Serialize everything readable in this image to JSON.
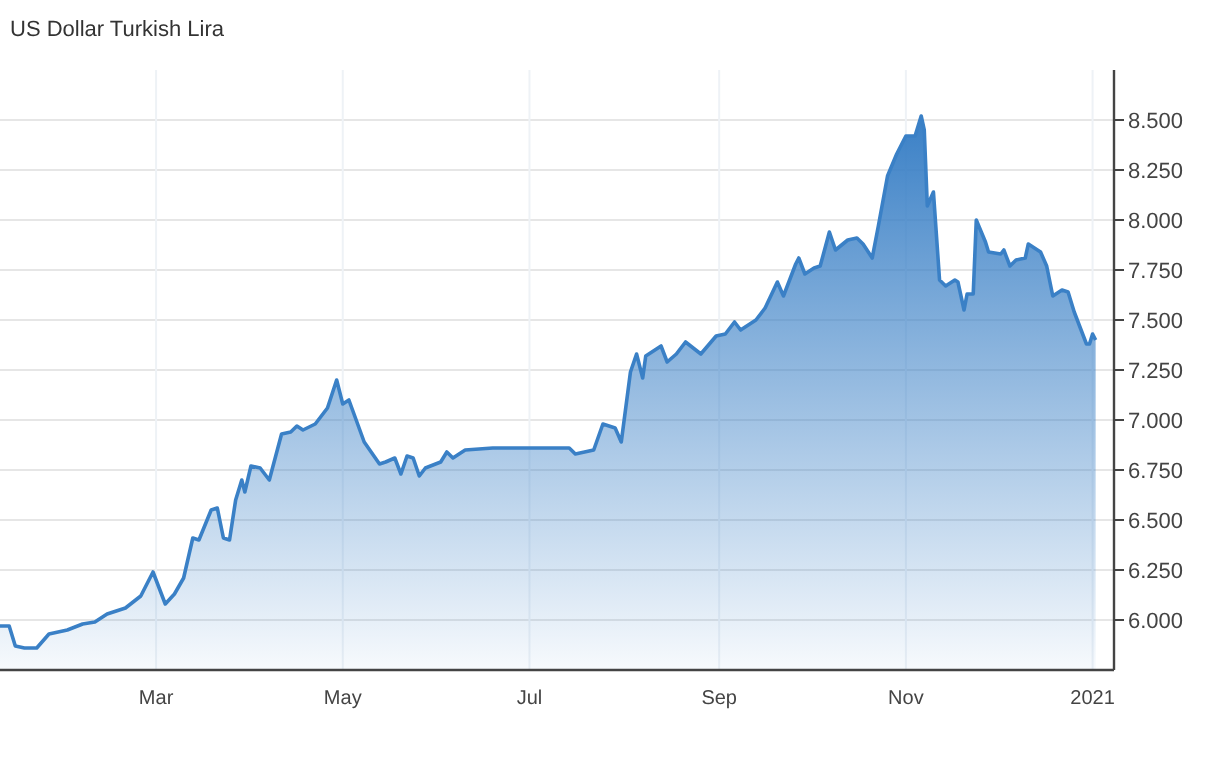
{
  "chart_data": {
    "type": "area",
    "title": "US Dollar Turkish Lira",
    "x": [
      "2020-01-10",
      "2020-01-13",
      "2020-01-15",
      "2020-01-18",
      "2020-01-22",
      "2020-01-26",
      "2020-02-01",
      "2020-02-06",
      "2020-02-10",
      "2020-02-14",
      "2020-02-20",
      "2020-02-25",
      "2020-02-29",
      "2020-03-04",
      "2020-03-07",
      "2020-03-10",
      "2020-03-13",
      "2020-03-15",
      "2020-03-19",
      "2020-03-21",
      "2020-03-23",
      "2020-03-25",
      "2020-03-27",
      "2020-03-29",
      "2020-03-30",
      "2020-04-01",
      "2020-04-04",
      "2020-04-07",
      "2020-04-11",
      "2020-04-14",
      "2020-04-16",
      "2020-04-18",
      "2020-04-22",
      "2020-04-26",
      "2020-04-29",
      "2020-05-01",
      "2020-05-03",
      "2020-05-08",
      "2020-05-13",
      "2020-05-15",
      "2020-05-18",
      "2020-05-20",
      "2020-05-22",
      "2020-05-24",
      "2020-05-26",
      "2020-05-28",
      "2020-06-02",
      "2020-06-04",
      "2020-06-06",
      "2020-06-10",
      "2020-06-19",
      "2020-06-28",
      "2020-07-06",
      "2020-07-14",
      "2020-07-16",
      "2020-07-22",
      "2020-07-25",
      "2020-07-29",
      "2020-07-31",
      "2020-08-03",
      "2020-08-05",
      "2020-08-07",
      "2020-08-08",
      "2020-08-13",
      "2020-08-15",
      "2020-08-18",
      "2020-08-21",
      "2020-08-26",
      "2020-08-31",
      "2020-09-03",
      "2020-09-06",
      "2020-09-08",
      "2020-09-13",
      "2020-09-16",
      "2020-09-20",
      "2020-09-22",
      "2020-09-26",
      "2020-09-27",
      "2020-09-29",
      "2020-10-02",
      "2020-10-04",
      "2020-10-07",
      "2020-10-09",
      "2020-10-13",
      "2020-10-16",
      "2020-10-18",
      "2020-10-21",
      "2020-10-23",
      "2020-10-26",
      "2020-10-29",
      "2020-11-01",
      "2020-11-04",
      "2020-11-06",
      "2020-11-07",
      "2020-11-08",
      "2020-11-10",
      "2020-11-12",
      "2020-11-14",
      "2020-11-17",
      "2020-11-18",
      "2020-11-20",
      "2020-11-21",
      "2020-11-23",
      "2020-11-24",
      "2020-11-27",
      "2020-11-28",
      "2020-12-02",
      "2020-12-03",
      "2020-12-05",
      "2020-12-07",
      "2020-12-10",
      "2020-12-11",
      "2020-12-15",
      "2020-12-17",
      "2020-12-19",
      "2020-12-22",
      "2020-12-24",
      "2020-12-26",
      "2020-12-30",
      "2020-12-31",
      "2021-01-01",
      "2021-01-02"
    ],
    "series": [
      {
        "color": "#3a80c6",
        "values": [
          5.97,
          5.97,
          5.87,
          5.86,
          5.86,
          5.93,
          5.95,
          5.98,
          5.99,
          6.03,
          6.06,
          6.12,
          6.24,
          6.08,
          6.13,
          6.21,
          6.41,
          6.4,
          6.55,
          6.56,
          6.41,
          6.4,
          6.6,
          6.7,
          6.64,
          6.77,
          6.76,
          6.7,
          6.93,
          6.94,
          6.97,
          6.95,
          6.98,
          7.06,
          7.2,
          7.08,
          7.1,
          6.89,
          6.78,
          6.79,
          6.81,
          6.73,
          6.82,
          6.81,
          6.72,
          6.76,
          6.79,
          6.84,
          6.81,
          6.85,
          6.86,
          6.86,
          6.86,
          6.86,
          6.83,
          6.85,
          6.98,
          6.96,
          6.89,
          7.24,
          7.33,
          7.21,
          7.32,
          7.37,
          7.29,
          7.33,
          7.39,
          7.33,
          7.42,
          7.43,
          7.49,
          7.45,
          7.5,
          7.56,
          7.69,
          7.62,
          7.78,
          7.81,
          7.73,
          7.76,
          7.77,
          7.94,
          7.85,
          7.9,
          7.91,
          7.88,
          7.81,
          7.97,
          8.22,
          8.33,
          8.42,
          8.42,
          8.52,
          8.45,
          8.07,
          8.14,
          7.7,
          7.67,
          7.7,
          7.69,
          7.55,
          7.63,
          7.63,
          8.0,
          7.89,
          7.84,
          7.83,
          7.85,
          7.77,
          7.8,
          7.81,
          7.88,
          7.84,
          7.77,
          7.62,
          7.65,
          7.64,
          7.54,
          7.38,
          7.38,
          7.43,
          7.4
        ]
      }
    ],
    "xlim": [
      "2020-01-10",
      "2021-01-08"
    ],
    "xticks": [
      {
        "value": "2020-03-01",
        "label": "Mar"
      },
      {
        "value": "2020-05-01",
        "label": "May"
      },
      {
        "value": "2020-07-01",
        "label": "Jul"
      },
      {
        "value": "2020-09-01",
        "label": "Sep"
      },
      {
        "value": "2020-11-01",
        "label": "Nov"
      },
      {
        "value": "2021-01-01",
        "label": "2021"
      }
    ],
    "ylim": [
      5.75,
      8.75
    ],
    "yticks": [
      {
        "value": 6,
        "label": "6.000"
      },
      {
        "value": 6.25,
        "label": "6.250"
      },
      {
        "value": 6.5,
        "label": "6.500"
      },
      {
        "value": 6.75,
        "label": "6.750"
      },
      {
        "value": 7,
        "label": "7.000"
      },
      {
        "value": 7.25,
        "label": "7.250"
      },
      {
        "value": 7.5,
        "label": "7.500"
      },
      {
        "value": 7.75,
        "label": "7.750"
      },
      {
        "value": 8,
        "label": "8.000"
      },
      {
        "value": 8.25,
        "label": "8.250"
      },
      {
        "value": 8.5,
        "label": "8.500"
      }
    ],
    "grid": true,
    "marker": "none"
  }
}
